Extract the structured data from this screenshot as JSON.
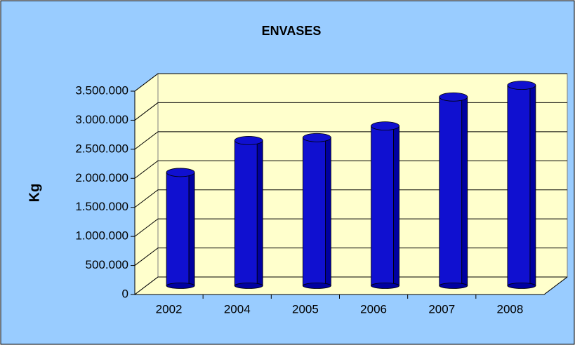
{
  "chart_data": {
    "type": "bar3d",
    "title": "ENVASES",
    "y_label": "Kg",
    "categories": [
      "2002",
      "2004",
      "2005",
      "2006",
      "2007",
      "2008"
    ],
    "values": [
      1950000,
      2500000,
      2550000,
      2750000,
      3250000,
      3450000
    ],
    "color": "#1010d0",
    "ylim": [
      0,
      3500000
    ],
    "yticks": [
      0,
      {
        "value": 500000,
        "label": "500.000"
      },
      {
        "value": 1000000,
        "label": "1.000.000"
      },
      {
        "value": 1500000,
        "label": "1.500.000"
      },
      {
        "value": 2000000,
        "label": "2.000.000"
      },
      {
        "value": 2500000,
        "label": "2.500.000"
      },
      {
        "value": 3000000,
        "label": "3.000.000"
      },
      {
        "value": 3500000,
        "label": "3.500.000"
      }
    ],
    "grid": true
  }
}
